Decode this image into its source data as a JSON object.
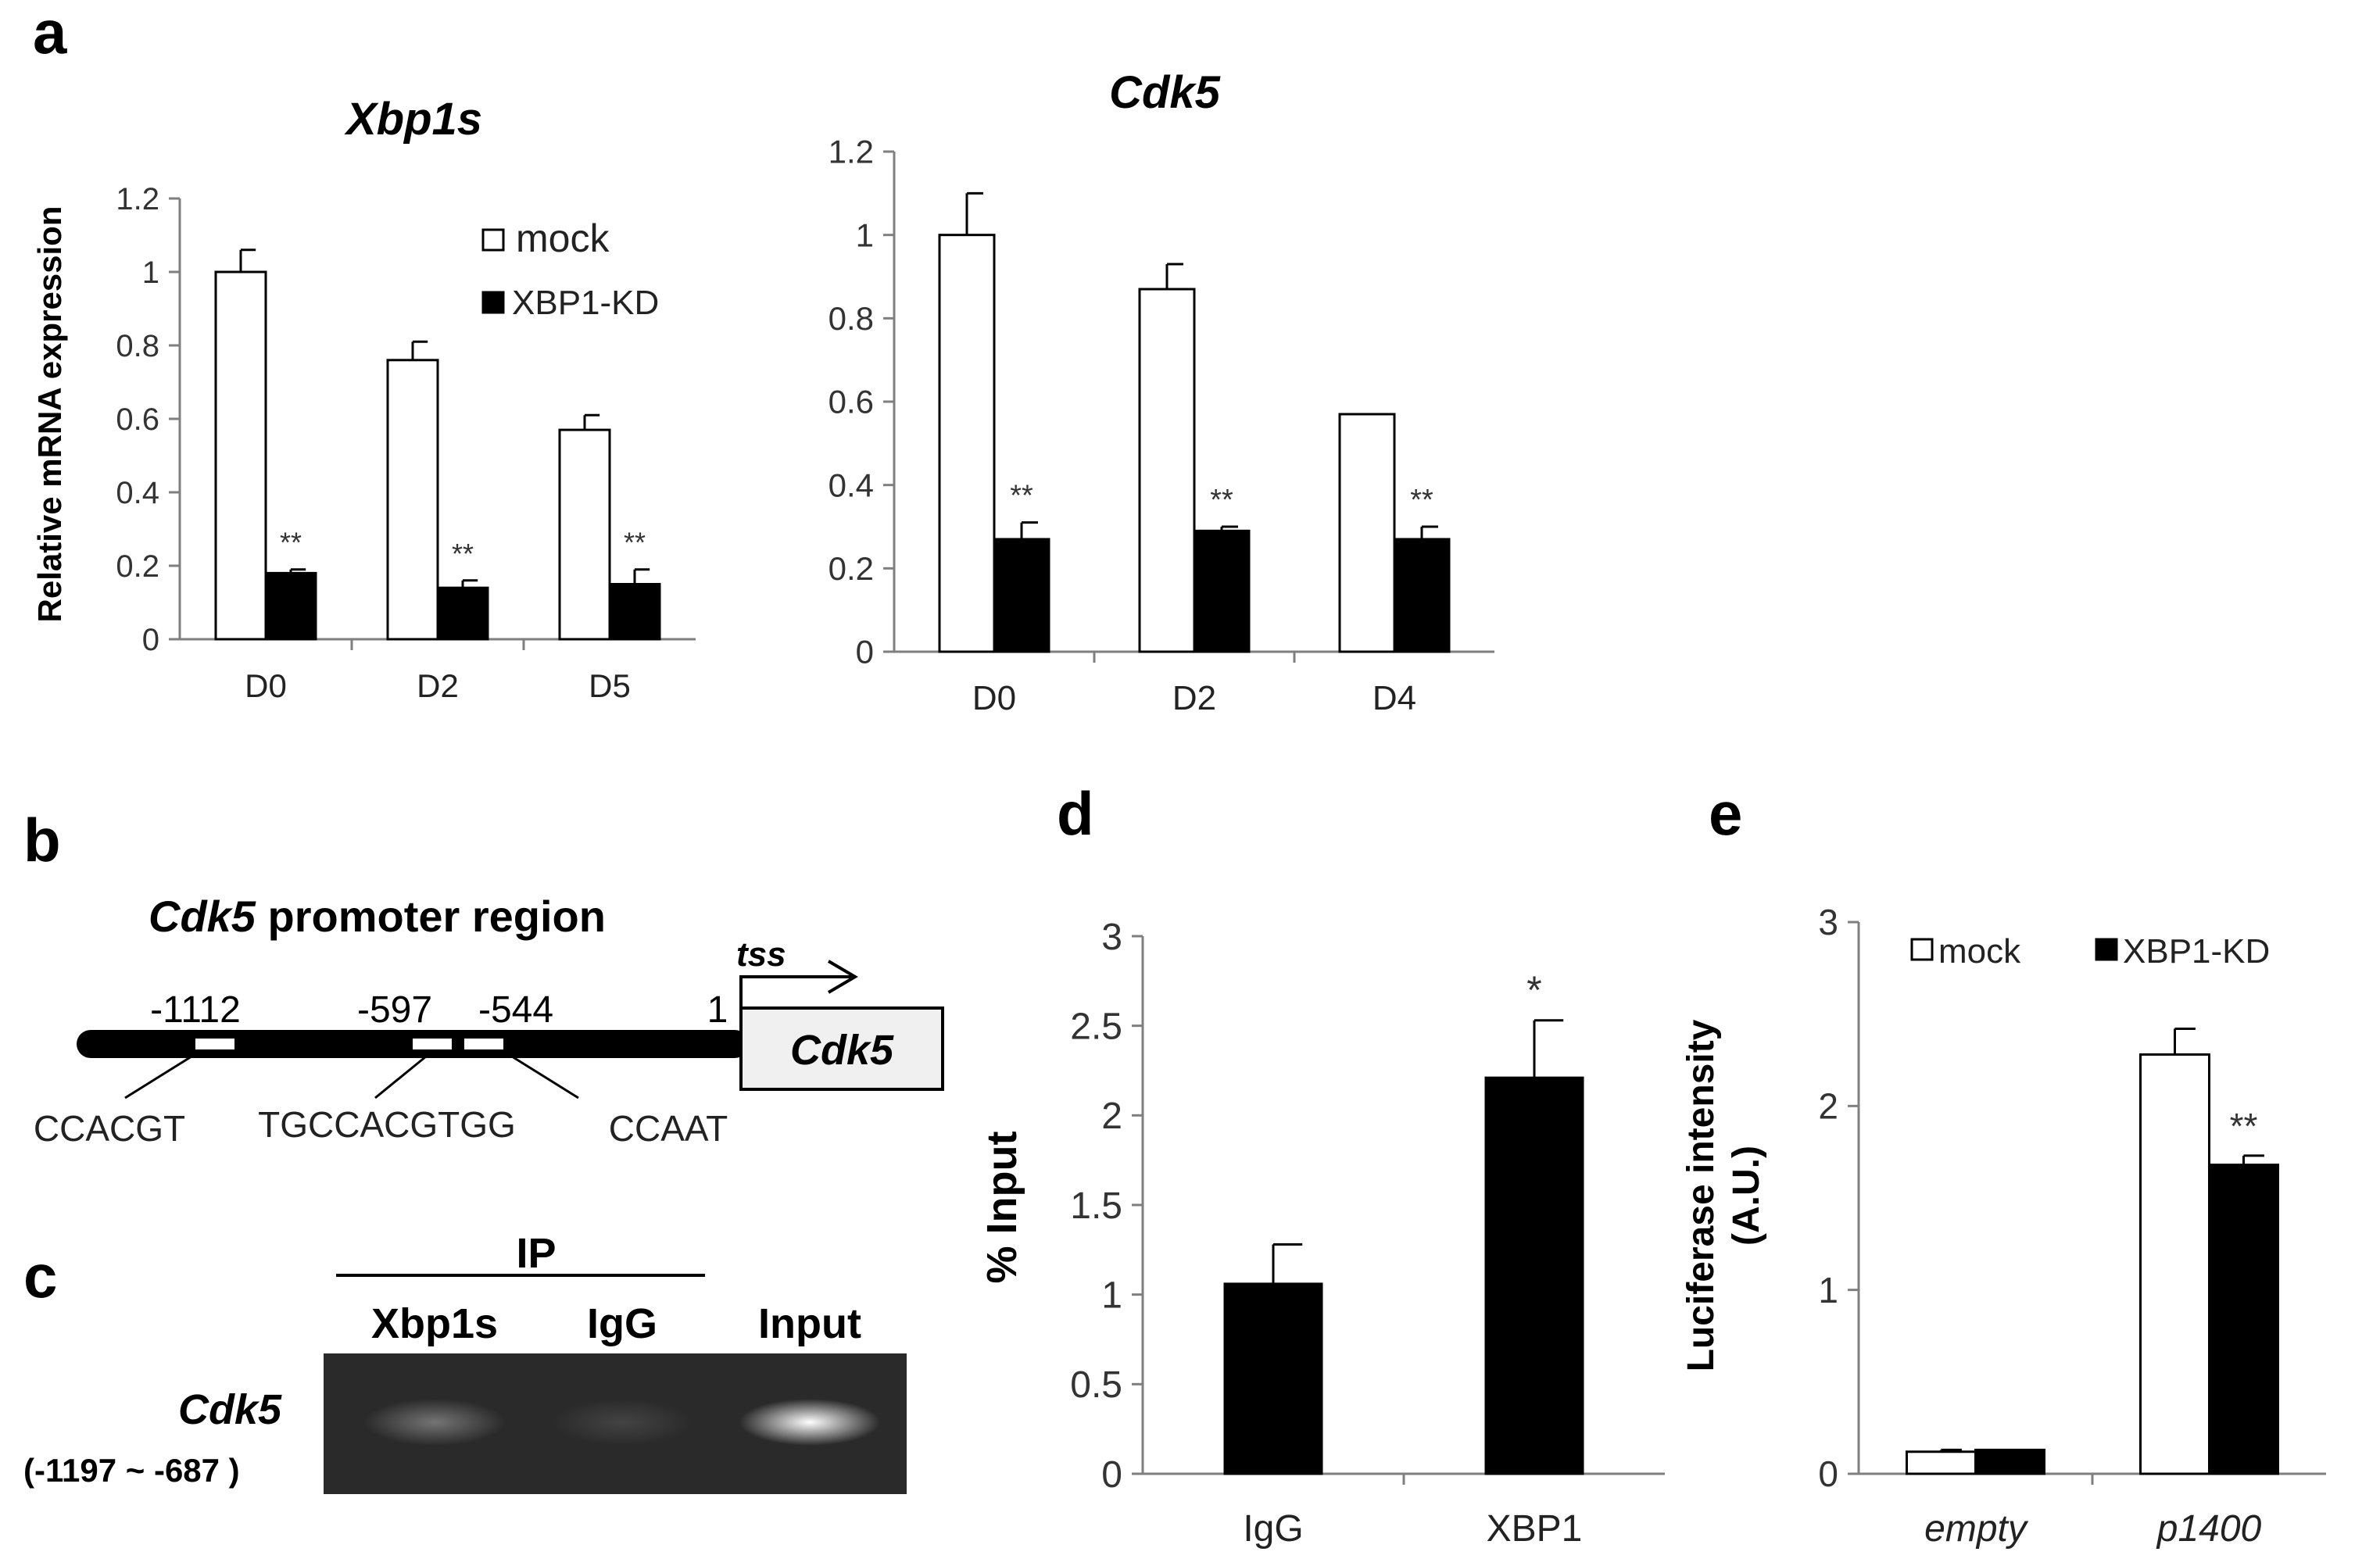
{
  "panels": {
    "a": "a",
    "b": "b",
    "c": "c",
    "d": "d",
    "e": "e"
  },
  "colors": {
    "mock": "#ffffff",
    "kd": "#000000",
    "axis": "#7f7f7f",
    "gel_bg": "#2a2a2a"
  },
  "chart_data": [
    {
      "id": "a1",
      "type": "bar",
      "title": "Xbp1s",
      "ylabel": "Relative mRNA expression",
      "xlabel": "",
      "ylim": [
        0,
        1.2
      ],
      "yticks": [
        0,
        0.2,
        0.4,
        0.6,
        0.8,
        1,
        1.2
      ],
      "ytick_labels": [
        "0",
        "0.2",
        "0.4",
        "0.6",
        "0.8",
        "1",
        "1.2"
      ],
      "categories": [
        "D0",
        "D2",
        "D5"
      ],
      "legend": "top-right",
      "series": [
        {
          "name": "mock",
          "color": "#ffffff",
          "values": [
            1.0,
            0.76,
            0.57
          ],
          "errors": [
            0.06,
            0.05,
            0.04
          ]
        },
        {
          "name": "XBP1-KD",
          "color": "#000000",
          "values": [
            0.18,
            0.14,
            0.15
          ],
          "errors": [
            0.01,
            0.02,
            0.04
          ]
        }
      ],
      "annotations": [
        "**",
        "**",
        "**"
      ]
    },
    {
      "id": "a2",
      "type": "bar",
      "title": "Cdk5",
      "ylabel": "",
      "xlabel": "",
      "ylim": [
        0,
        1.2
      ],
      "yticks": [
        0,
        0.2,
        0.4,
        0.6,
        0.8,
        1,
        1.2
      ],
      "ytick_labels": [
        "0",
        "0.2",
        "0.4",
        "0.6",
        "0.8",
        "1",
        "1.2"
      ],
      "categories": [
        "D0",
        "D2",
        "D4"
      ],
      "series": [
        {
          "name": "mock",
          "color": "#ffffff",
          "values": [
            1.0,
            0.87,
            0.57
          ],
          "errors": [
            0.1,
            0.06,
            0.0
          ]
        },
        {
          "name": "XBP1-KD",
          "color": "#000000",
          "values": [
            0.27,
            0.29,
            0.27
          ],
          "errors": [
            0.04,
            0.01,
            0.03
          ]
        }
      ],
      "annotations": [
        "**",
        "**",
        "**"
      ]
    },
    {
      "id": "d",
      "type": "bar",
      "title": "",
      "ylabel": "% Input",
      "xlabel": "",
      "ylim": [
        0,
        3
      ],
      "yticks": [
        0,
        0.5,
        1,
        1.5,
        2,
        2.5,
        3
      ],
      "ytick_labels": [
        "0",
        "0.5",
        "1",
        "1.5",
        "2",
        "2.5",
        "3"
      ],
      "categories": [
        "IgG",
        "XBP1"
      ],
      "series": [
        {
          "color": "#000000",
          "values": [
            1.06,
            2.21
          ],
          "errors": [
            0.22,
            0.32
          ]
        }
      ],
      "annotations": [
        "",
        "*"
      ]
    },
    {
      "id": "e",
      "type": "bar",
      "title": "",
      "ylabel": "Luciferase intensity (A.U.)",
      "ylabel_lines": [
        "Luciferase intensity",
        "(A.U.)"
      ],
      "xlabel": "",
      "ylim": [
        0,
        3
      ],
      "yticks": [
        0,
        1,
        2,
        3
      ],
      "ytick_labels": [
        "0",
        "1",
        "2",
        "3"
      ],
      "categories": [
        "empty",
        "p1400"
      ],
      "legend": "top",
      "series": [
        {
          "name": "mock",
          "color": "#ffffff",
          "values": [
            0.12,
            2.28
          ],
          "errors": [
            0.01,
            0.14
          ]
        },
        {
          "name": "XBP1-KD",
          "color": "#000000",
          "values": [
            0.13,
            1.68
          ],
          "errors": [
            0.0,
            0.05
          ]
        }
      ],
      "annotations": [
        "",
        "**"
      ]
    }
  ],
  "diagram_b": {
    "title_italic": "Cdk5",
    "title_rest": " promoter region",
    "tss": "tss",
    "gene_label": "Cdk5",
    "positions": [
      "-1112",
      "-597",
      "-544",
      "1"
    ],
    "motifs": [
      "CCACGT",
      "TGCCACGTGG",
      "CCAAT"
    ]
  },
  "gel_c": {
    "ip_label": "IP",
    "lanes": [
      "Xbp1s",
      "IgG",
      "Input"
    ],
    "row_label": "Cdk5",
    "row_sublabel": "(-1197 ~ -687 )",
    "band_intensity": [
      0.35,
      0.12,
      1.0
    ]
  }
}
